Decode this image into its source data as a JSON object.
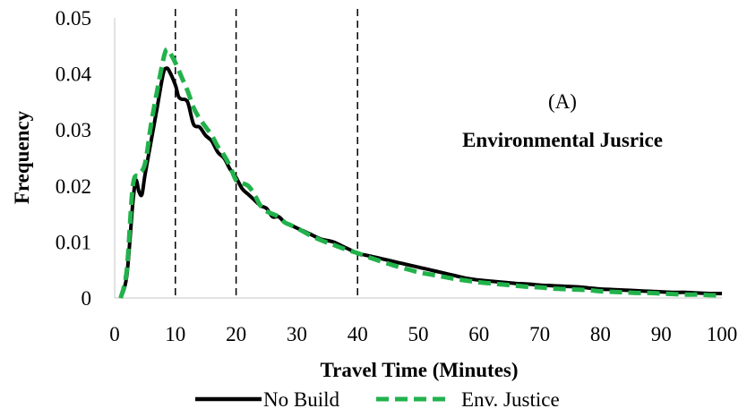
{
  "chart_data": {
    "type": "line",
    "xlabel": "Travel Time (Minutes)",
    "ylabel": "Frequency",
    "xlim": [
      0,
      100
    ],
    "ylim": [
      0,
      0.05
    ],
    "x_ticks": [
      "0",
      "10",
      "20",
      "30",
      "40",
      "50",
      "60",
      "70",
      "80",
      "90",
      "100"
    ],
    "y_ticks": [
      "0",
      "0.01",
      "0.02",
      "0.03",
      "0.04",
      "0.05"
    ],
    "grid": false,
    "legend_position": "bottom",
    "annotations": {
      "label": "(A)",
      "subtitle": "Environmental Jusrice"
    },
    "reference_lines_x": [
      10,
      20,
      40
    ],
    "series": [
      {
        "name": "No Build",
        "color": "#000000",
        "style": "solid",
        "points": [
          [
            1,
            0
          ],
          [
            2,
            0.004
          ],
          [
            3,
            0.017
          ],
          [
            3.5,
            0.021
          ],
          [
            4,
            0.019
          ],
          [
            4.5,
            0.0185
          ],
          [
            5,
            0.022
          ],
          [
            6,
            0.028
          ],
          [
            7,
            0.034
          ],
          [
            8,
            0.04
          ],
          [
            8.5,
            0.041
          ],
          [
            9,
            0.0405
          ],
          [
            10,
            0.038
          ],
          [
            10.5,
            0.036
          ],
          [
            11,
            0.0355
          ],
          [
            12,
            0.035
          ],
          [
            13,
            0.031
          ],
          [
            14,
            0.0305
          ],
          [
            15,
            0.029
          ],
          [
            16,
            0.028
          ],
          [
            17,
            0.026
          ],
          [
            18,
            0.025
          ],
          [
            19,
            0.023
          ],
          [
            20,
            0.0215
          ],
          [
            21,
            0.0195
          ],
          [
            22,
            0.0185
          ],
          [
            23,
            0.0175
          ],
          [
            24,
            0.0165
          ],
          [
            25,
            0.016
          ],
          [
            26,
            0.0145
          ],
          [
            27,
            0.0145
          ],
          [
            28,
            0.0135
          ],
          [
            29,
            0.013
          ],
          [
            30,
            0.0125
          ],
          [
            32,
            0.0115
          ],
          [
            34,
            0.0105
          ],
          [
            36,
            0.01
          ],
          [
            38,
            0.009
          ],
          [
            40,
            0.008
          ],
          [
            42,
            0.0075
          ],
          [
            44,
            0.007
          ],
          [
            46,
            0.0065
          ],
          [
            48,
            0.006
          ],
          [
            50,
            0.0055
          ],
          [
            52,
            0.005
          ],
          [
            54,
            0.0045
          ],
          [
            56,
            0.004
          ],
          [
            58,
            0.0035
          ],
          [
            60,
            0.0032
          ],
          [
            62,
            0.003
          ],
          [
            64,
            0.0028
          ],
          [
            66,
            0.0026
          ],
          [
            68,
            0.0025
          ],
          [
            70,
            0.0023
          ],
          [
            72,
            0.0022
          ],
          [
            74,
            0.0021
          ],
          [
            76,
            0.002
          ],
          [
            78,
            0.0018
          ],
          [
            80,
            0.0016
          ],
          [
            82,
            0.0015
          ],
          [
            84,
            0.0014
          ],
          [
            86,
            0.0013
          ],
          [
            88,
            0.0012
          ],
          [
            90,
            0.0011
          ],
          [
            92,
            0.001
          ],
          [
            94,
            0.001
          ],
          [
            96,
            0.0009
          ],
          [
            98,
            0.0008
          ],
          [
            100,
            0.0008
          ]
        ]
      },
      {
        "name": "Env. Justice",
        "color": "#22b24c",
        "style": "dashed",
        "points": [
          [
            1,
            0
          ],
          [
            2,
            0.005
          ],
          [
            3,
            0.02
          ],
          [
            4,
            0.022
          ],
          [
            5,
            0.024
          ],
          [
            6,
            0.031
          ],
          [
            7,
            0.037
          ],
          [
            8,
            0.0425
          ],
          [
            8.5,
            0.0443
          ],
          [
            9,
            0.044
          ],
          [
            10,
            0.042
          ],
          [
            11,
            0.0395
          ],
          [
            12,
            0.037
          ],
          [
            13,
            0.034
          ],
          [
            14,
            0.032
          ],
          [
            15,
            0.0305
          ],
          [
            16,
            0.029
          ],
          [
            17,
            0.027
          ],
          [
            18,
            0.0255
          ],
          [
            19,
            0.0235
          ],
          [
            20,
            0.021
          ],
          [
            21,
            0.0205
          ],
          [
            22,
            0.02
          ],
          [
            23,
            0.0185
          ],
          [
            24,
            0.0165
          ],
          [
            25,
            0.0155
          ],
          [
            26,
            0.015
          ],
          [
            27,
            0.0145
          ],
          [
            28,
            0.0135
          ],
          [
            29,
            0.013
          ],
          [
            30,
            0.0125
          ],
          [
            32,
            0.0113
          ],
          [
            34,
            0.0103
          ],
          [
            36,
            0.0095
          ],
          [
            38,
            0.0087
          ],
          [
            40,
            0.008
          ],
          [
            42,
            0.0072
          ],
          [
            44,
            0.0065
          ],
          [
            46,
            0.0058
          ],
          [
            48,
            0.0052
          ],
          [
            50,
            0.0046
          ],
          [
            52,
            0.0042
          ],
          [
            54,
            0.0038
          ],
          [
            56,
            0.0034
          ],
          [
            58,
            0.0031
          ],
          [
            60,
            0.0028
          ],
          [
            62,
            0.0026
          ],
          [
            64,
            0.0024
          ],
          [
            66,
            0.0022
          ],
          [
            68,
            0.002
          ],
          [
            70,
            0.0019
          ],
          [
            72,
            0.0017
          ],
          [
            74,
            0.0016
          ],
          [
            76,
            0.0015
          ],
          [
            78,
            0.0014
          ],
          [
            80,
            0.0012
          ],
          [
            82,
            0.0011
          ],
          [
            84,
            0.001
          ],
          [
            86,
            0.0009
          ],
          [
            88,
            0.0009
          ],
          [
            90,
            0.0008
          ],
          [
            92,
            0.0007
          ],
          [
            94,
            0.0006
          ],
          [
            96,
            0.0006
          ],
          [
            98,
            0.0005
          ],
          [
            100,
            0.0005
          ]
        ]
      }
    ]
  }
}
